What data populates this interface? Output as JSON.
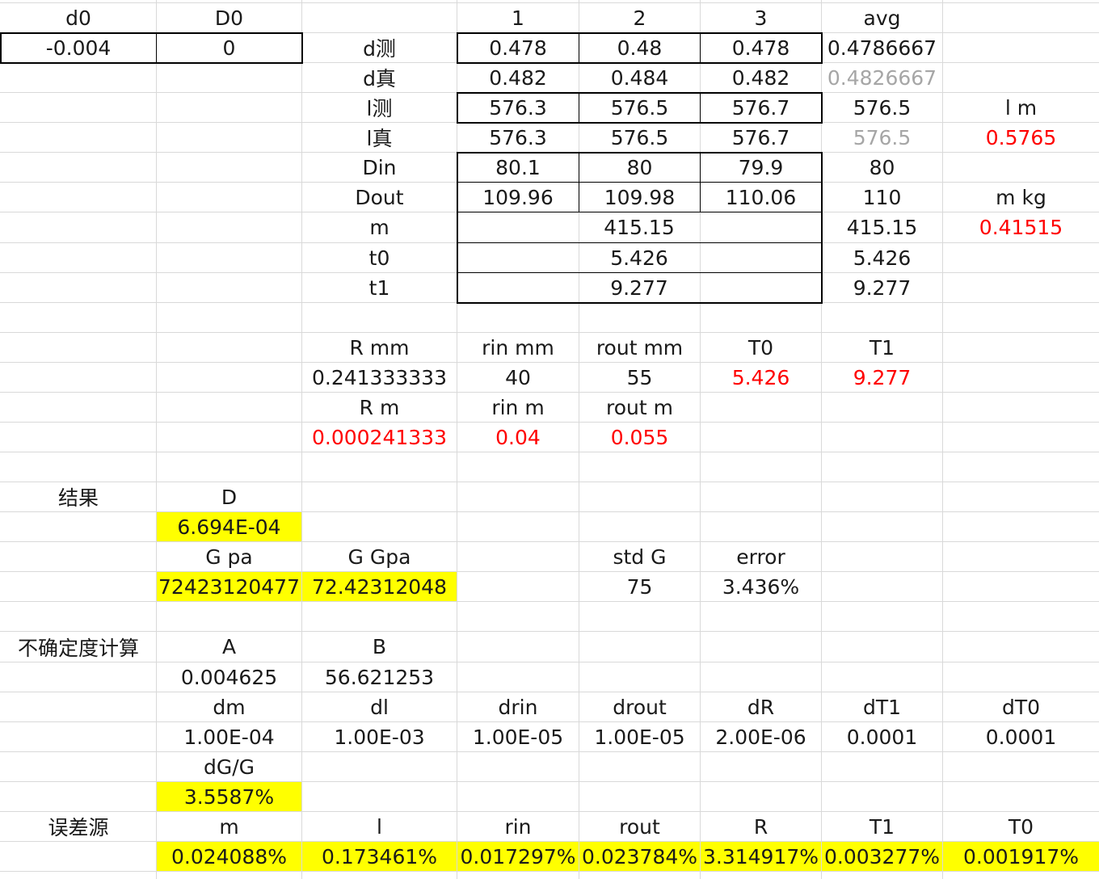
{
  "sheet": {
    "rows": [
      [
        {
          "c": 0,
          "t": "d0"
        },
        {
          "c": 1,
          "t": "D0"
        },
        {
          "c": 3,
          "t": "1"
        },
        {
          "c": 4,
          "t": "2"
        },
        {
          "c": 5,
          "t": "3"
        },
        {
          "c": 6,
          "t": "avg"
        }
      ],
      [
        {
          "c": 0,
          "t": "-0.004"
        },
        {
          "c": 1,
          "t": "0"
        },
        {
          "c": 2,
          "t": "d测"
        },
        {
          "c": 3,
          "t": "0.478"
        },
        {
          "c": 4,
          "t": "0.48"
        },
        {
          "c": 5,
          "t": "0.478"
        },
        {
          "c": 6,
          "t": "0.4786667"
        }
      ],
      [
        {
          "c": 2,
          "t": "d真"
        },
        {
          "c": 3,
          "t": "0.482"
        },
        {
          "c": 4,
          "t": "0.484"
        },
        {
          "c": 5,
          "t": "0.482"
        },
        {
          "c": 6,
          "t": "0.4826667",
          "s": "gray"
        }
      ],
      [
        {
          "c": 2,
          "t": "l测"
        },
        {
          "c": 3,
          "t": "576.3"
        },
        {
          "c": 4,
          "t": "576.5"
        },
        {
          "c": 5,
          "t": "576.7"
        },
        {
          "c": 6,
          "t": "576.5"
        },
        {
          "c": 7,
          "t": "l m"
        }
      ],
      [
        {
          "c": 2,
          "t": "l真"
        },
        {
          "c": 3,
          "t": "576.3"
        },
        {
          "c": 4,
          "t": "576.5"
        },
        {
          "c": 5,
          "t": "576.7"
        },
        {
          "c": 6,
          "t": "576.5",
          "s": "gray"
        },
        {
          "c": 7,
          "t": "0.5765",
          "s": "red"
        }
      ],
      [
        {
          "c": 2,
          "t": "Din"
        },
        {
          "c": 3,
          "t": "80.1"
        },
        {
          "c": 4,
          "t": "80"
        },
        {
          "c": 5,
          "t": "79.9"
        },
        {
          "c": 6,
          "t": "80"
        }
      ],
      [
        {
          "c": 2,
          "t": "Dout"
        },
        {
          "c": 3,
          "t": "109.96"
        },
        {
          "c": 4,
          "t": "109.98"
        },
        {
          "c": 5,
          "t": "110.06"
        },
        {
          "c": 6,
          "t": "110"
        },
        {
          "c": 7,
          "t": "m kg"
        }
      ],
      [
        {
          "c": 2,
          "t": "m"
        },
        {
          "c": 3,
          "span": 3,
          "t": "415.15"
        },
        {
          "c": 6,
          "t": "415.15"
        },
        {
          "c": 7,
          "t": "0.41515",
          "s": "red"
        }
      ],
      [
        {
          "c": 2,
          "t": "t0"
        },
        {
          "c": 3,
          "span": 3,
          "t": "5.426"
        },
        {
          "c": 6,
          "t": "5.426"
        }
      ],
      [
        {
          "c": 2,
          "t": "t1"
        },
        {
          "c": 3,
          "span": 3,
          "t": "9.277"
        },
        {
          "c": 6,
          "t": "9.277"
        }
      ],
      [],
      [
        {
          "c": 2,
          "t": "R mm"
        },
        {
          "c": 3,
          "t": "rin mm"
        },
        {
          "c": 4,
          "t": "rout mm"
        },
        {
          "c": 5,
          "t": "T0"
        },
        {
          "c": 6,
          "t": "T1"
        }
      ],
      [
        {
          "c": 2,
          "t": "0.241333333"
        },
        {
          "c": 3,
          "t": "40"
        },
        {
          "c": 4,
          "t": "55"
        },
        {
          "c": 5,
          "t": "5.426",
          "s": "red"
        },
        {
          "c": 6,
          "t": "9.277",
          "s": "red"
        }
      ],
      [
        {
          "c": 2,
          "t": "R m"
        },
        {
          "c": 3,
          "t": "rin m"
        },
        {
          "c": 4,
          "t": "rout m"
        }
      ],
      [
        {
          "c": 2,
          "t": "0.000241333",
          "s": "red"
        },
        {
          "c": 3,
          "t": "0.04",
          "s": "red"
        },
        {
          "c": 4,
          "t": "0.055",
          "s": "red"
        }
      ],
      [],
      [
        {
          "c": 0,
          "t": "结果"
        },
        {
          "c": 1,
          "t": "D"
        }
      ],
      [
        {
          "c": 1,
          "t": "6.694E-04",
          "s": "hl"
        }
      ],
      [
        {
          "c": 1,
          "t": "G pa"
        },
        {
          "c": 2,
          "t": "G Gpa"
        },
        {
          "c": 4,
          "t": "std G"
        },
        {
          "c": 5,
          "t": "error"
        }
      ],
      [
        {
          "c": 1,
          "t": "72423120477",
          "s": "hl"
        },
        {
          "c": 2,
          "t": "72.42312048",
          "s": "hl"
        },
        {
          "c": 4,
          "t": "75"
        },
        {
          "c": 5,
          "t": "3.436%"
        }
      ],
      [],
      [
        {
          "c": 0,
          "t": "不确定度计算"
        },
        {
          "c": 1,
          "t": "A"
        },
        {
          "c": 2,
          "t": "B"
        }
      ],
      [
        {
          "c": 1,
          "t": "0.004625"
        },
        {
          "c": 2,
          "t": "56.621253"
        }
      ],
      [
        {
          "c": 1,
          "t": "dm"
        },
        {
          "c": 2,
          "t": "dl"
        },
        {
          "c": 3,
          "t": "drin"
        },
        {
          "c": 4,
          "t": "drout"
        },
        {
          "c": 5,
          "t": "dR"
        },
        {
          "c": 6,
          "t": "dT1"
        },
        {
          "c": 7,
          "t": "dT0"
        }
      ],
      [
        {
          "c": 1,
          "t": "1.00E-04"
        },
        {
          "c": 2,
          "t": "1.00E-03"
        },
        {
          "c": 3,
          "t": "1.00E-05"
        },
        {
          "c": 4,
          "t": "1.00E-05"
        },
        {
          "c": 5,
          "t": "2.00E-06"
        },
        {
          "c": 6,
          "t": "0.0001"
        },
        {
          "c": 7,
          "t": "0.0001"
        }
      ],
      [
        {
          "c": 1,
          "t": "dG/G"
        }
      ],
      [
        {
          "c": 1,
          "t": "3.5587%",
          "s": "hl"
        }
      ],
      [
        {
          "c": 0,
          "t": "误差源"
        },
        {
          "c": 1,
          "t": "m"
        },
        {
          "c": 2,
          "t": "l"
        },
        {
          "c": 3,
          "t": "rin"
        },
        {
          "c": 4,
          "t": "rout"
        },
        {
          "c": 5,
          "t": "R"
        },
        {
          "c": 6,
          "t": "T1"
        },
        {
          "c": 7,
          "t": "T0"
        }
      ],
      [
        {
          "c": 1,
          "t": "0.024088%",
          "s": "hl"
        },
        {
          "c": 2,
          "t": "0.173461%",
          "s": "hl"
        },
        {
          "c": 3,
          "t": "0.017297%",
          "s": "hl"
        },
        {
          "c": 4,
          "t": "0.023784%",
          "s": "hl"
        },
        {
          "c": 5,
          "t": "3.314917%",
          "s": "hl"
        },
        {
          "c": 6,
          "t": "0.003277%",
          "s": "hl"
        },
        {
          "c": 7,
          "t": "0.001917%",
          "s": "hl"
        }
      ]
    ]
  }
}
